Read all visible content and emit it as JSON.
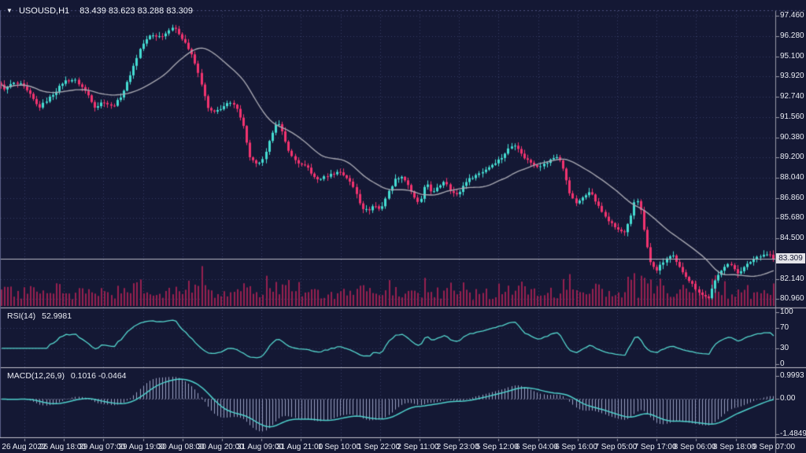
{
  "title": {
    "dropdown_icon": "▼",
    "symbol": "USOUSD,H1",
    "ohlc_values": "83.439 83.623 83.288 83.309"
  },
  "colors": {
    "background": "#141834",
    "grid": "#373d66",
    "bull_candle": "#45dcd2",
    "bear_candle": "#f2336f",
    "volume": "#97204f",
    "moving_average": "#a6a6b0",
    "rsi_line": "#55d6ce",
    "macd_signal": "#4fd0cc",
    "macd_histogram": "#9aa0c2",
    "separator": "#c2c2cc",
    "axis_line": "#9a9aa8",
    "text": "#e9ebf2",
    "badge_bg": "#e4e4e9",
    "badge_text": "#141834",
    "price_line": "#b9b9c4"
  },
  "chart_data": {
    "type": "candlestick",
    "symbol": "USOUSD",
    "timeframe": "H1",
    "title": "USOUSD,H1  83.439 83.623 83.288 83.309",
    "candle_count": 240,
    "ylim": [
      80.52,
      97.74
    ],
    "price_ticks": [
      97.46,
      96.28,
      95.1,
      93.92,
      92.74,
      91.56,
      90.38,
      89.2,
      88.04,
      86.86,
      85.68,
      84.5,
      82.14,
      80.96
    ],
    "current_price": 83.309,
    "current_price_label": "83.309",
    "time_ticks": [
      "26 Aug 2022",
      "26 Aug 18:00",
      "29 Aug 07:00",
      "29 Aug 19:00",
      "30 Aug 08:00",
      "30 Aug 20:00",
      "31 Aug 09:00",
      "31 Aug 21:00",
      "1 Sep 10:00",
      "1 Sep 22:00",
      "2 Sep 11:00",
      "2 Sep 23:00",
      "5 Sep 12:00",
      "6 Sep 04:00",
      "6 Sep 16:00",
      "7 Sep 05:00",
      "7 Sep 17:00",
      "8 Sep 06:00",
      "8 Sep 18:00",
      "9 Sep 07:00"
    ],
    "price_path": [
      [
        0,
        93.5
      ],
      [
        8,
        93.15
      ],
      [
        16,
        93.55
      ],
      [
        28,
        93.45
      ],
      [
        40,
        92.8
      ],
      [
        50,
        92.1
      ],
      [
        58,
        92.45
      ],
      [
        70,
        93.0
      ],
      [
        82,
        93.65
      ],
      [
        95,
        93.75
      ],
      [
        103,
        93.4
      ],
      [
        112,
        92.9
      ],
      [
        122,
        92.1
      ],
      [
        132,
        92.5
      ],
      [
        143,
        92.15
      ],
      [
        152,
        92.6
      ],
      [
        160,
        93.3
      ],
      [
        170,
        94.5
      ],
      [
        180,
        95.7
      ],
      [
        192,
        96.35
      ],
      [
        204,
        96.25
      ],
      [
        212,
        96.45
      ],
      [
        218,
        96.85
      ],
      [
        226,
        96.55
      ],
      [
        236,
        95.9
      ],
      [
        246,
        95.0
      ],
      [
        256,
        93.6
      ],
      [
        264,
        92.1
      ],
      [
        272,
        91.8
      ],
      [
        282,
        92.1
      ],
      [
        292,
        92.4
      ],
      [
        302,
        92.1
      ],
      [
        310,
        91.0
      ],
      [
        318,
        89.2
      ],
      [
        326,
        88.8
      ],
      [
        336,
        89.1
      ],
      [
        344,
        90.3
      ],
      [
        350,
        91.2
      ],
      [
        356,
        91.1
      ],
      [
        364,
        90.0
      ],
      [
        372,
        89.2
      ],
      [
        382,
        88.8
      ],
      [
        392,
        88.6
      ],
      [
        402,
        87.9
      ],
      [
        412,
        88.05
      ],
      [
        422,
        88.25
      ],
      [
        432,
        88.4
      ],
      [
        442,
        88.0
      ],
      [
        452,
        87.3
      ],
      [
        460,
        86.3
      ],
      [
        468,
        86.1
      ],
      [
        476,
        86.45
      ],
      [
        484,
        86.15
      ],
      [
        492,
        87.0
      ],
      [
        502,
        87.9
      ],
      [
        510,
        88.15
      ],
      [
        518,
        87.75
      ],
      [
        526,
        86.9
      ],
      [
        534,
        86.5
      ],
      [
        542,
        87.8
      ],
      [
        550,
        87.1
      ],
      [
        558,
        87.5
      ],
      [
        566,
        87.9
      ],
      [
        574,
        87.2
      ],
      [
        582,
        87.0
      ],
      [
        592,
        87.8
      ],
      [
        602,
        88.1
      ],
      [
        614,
        88.4
      ],
      [
        626,
        88.8
      ],
      [
        638,
        89.2
      ],
      [
        648,
        89.8
      ],
      [
        656,
        90.0
      ],
      [
        664,
        89.3
      ],
      [
        674,
        88.95
      ],
      [
        684,
        88.7
      ],
      [
        694,
        88.85
      ],
      [
        702,
        89.15
      ],
      [
        710,
        89.3
      ],
      [
        718,
        88.3
      ],
      [
        726,
        86.9
      ],
      [
        734,
        86.5
      ],
      [
        742,
        86.95
      ],
      [
        750,
        87.3
      ],
      [
        758,
        86.6
      ],
      [
        766,
        86.0
      ],
      [
        774,
        85.5
      ],
      [
        784,
        85.05
      ],
      [
        794,
        84.8
      ],
      [
        802,
        85.7
      ],
      [
        808,
        86.9
      ],
      [
        814,
        86.4
      ],
      [
        820,
        84.6
      ],
      [
        827,
        83.1
      ],
      [
        834,
        82.6
      ],
      [
        841,
        83.0
      ],
      [
        848,
        83.35
      ],
      [
        855,
        83.5
      ],
      [
        862,
        82.9
      ],
      [
        870,
        82.45
      ],
      [
        878,
        81.95
      ],
      [
        886,
        81.5
      ],
      [
        894,
        81.15
      ],
      [
        901,
        81.05
      ],
      [
        908,
        81.9
      ],
      [
        916,
        82.6
      ],
      [
        924,
        83.05
      ],
      [
        931,
        82.85
      ],
      [
        938,
        82.5
      ],
      [
        945,
        82.75
      ],
      [
        953,
        83.1
      ],
      [
        961,
        83.4
      ],
      [
        969,
        83.55
      ],
      [
        977,
        83.6
      ],
      [
        985,
        83.31
      ]
    ],
    "indicators": {
      "moving_average": {
        "period": 24
      },
      "rsi": {
        "name": "RSI(14)",
        "value_label": "52.9981",
        "period": 14,
        "level_ticks": [
          100,
          70,
          30,
          0
        ],
        "dotted_levels": [
          70,
          30
        ],
        "ylim": [
          0,
          100
        ]
      },
      "macd": {
        "name": "MACD(12,26,9)",
        "value_label": "0.1016 -0.0464",
        "fast": 12,
        "slow": 26,
        "signal": 9,
        "tick_labels": [
          "0.9993",
          "0.00",
          "-1.4849"
        ],
        "tick_values": [
          0.9993,
          0.0,
          -1.4849
        ],
        "ylim": [
          -1.62,
          1.25
        ]
      }
    }
  }
}
